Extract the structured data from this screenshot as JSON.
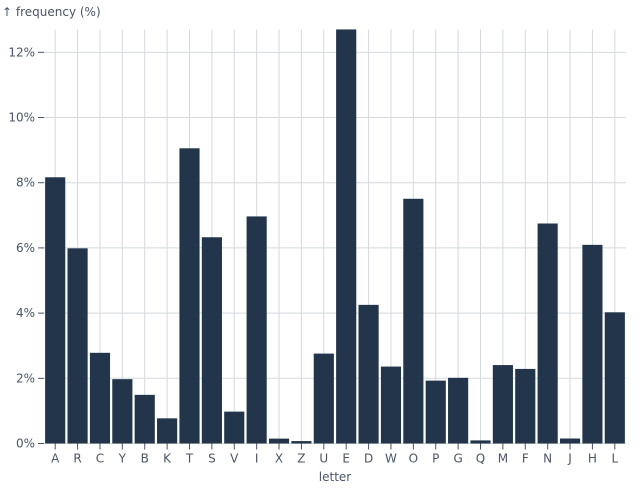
{
  "chart_data": {
    "type": "bar",
    "ylabel": "↑ frequency (%)",
    "xlabel": "letter",
    "ylim": [
      0,
      12.7
    ],
    "yticks": [
      0,
      2,
      4,
      6,
      8,
      10,
      12
    ],
    "ytick_format": "%",
    "grid": true,
    "bar_color": "#22354a",
    "categories": [
      "A",
      "R",
      "C",
      "Y",
      "B",
      "K",
      "T",
      "S",
      "V",
      "I",
      "X",
      "Z",
      "U",
      "E",
      "D",
      "W",
      "O",
      "P",
      "G",
      "Q",
      "M",
      "F",
      "N",
      "J",
      "H",
      "L"
    ],
    "values": [
      8.167,
      5.987,
      2.782,
      1.974,
      1.492,
      0.772,
      9.056,
      6.327,
      0.978,
      6.966,
      0.15,
      0.074,
      2.758,
      12.702,
      4.253,
      2.36,
      7.507,
      1.929,
      2.015,
      0.095,
      2.406,
      2.288,
      6.749,
      0.153,
      6.094,
      4.025
    ]
  }
}
